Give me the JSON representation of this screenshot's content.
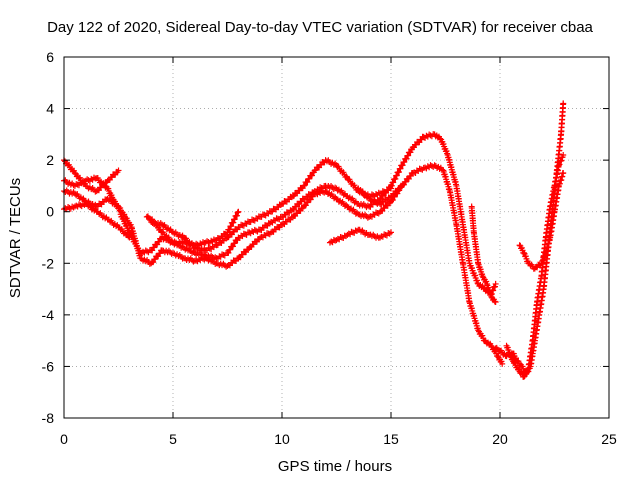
{
  "chart_data": {
    "type": "scatter",
    "title": "Day 122 of 2020, Sidereal Day-to-day VTEC variation (SDTVAR) for receiver cbaa",
    "xlabel": "GPS time / hours",
    "ylabel": "SDTVAR / TECUs",
    "xlim": [
      0,
      25
    ],
    "ylim": [
      -8,
      6
    ],
    "xticks": [
      "0",
      "5",
      "10",
      "15",
      "20",
      "25"
    ],
    "yticks": [
      "-8",
      "-6",
      "-4",
      "-2",
      "0",
      "2",
      "4",
      "6"
    ],
    "grid": true,
    "marker": "+",
    "color": "#ff0000",
    "series": [
      {
        "points": [
          [
            0,
            2.0
          ],
          [
            0.5,
            1.5
          ],
          [
            1,
            1.0
          ],
          [
            1.5,
            0.8
          ],
          [
            2,
            1.2
          ],
          [
            2.5,
            1.6
          ]
        ]
      },
      {
        "points": [
          [
            0,
            1.2
          ],
          [
            0.5,
            1.0
          ],
          [
            1,
            1.2
          ],
          [
            1.5,
            1.3
          ],
          [
            2,
            0.9
          ],
          [
            2.3,
            0.4
          ],
          [
            2.6,
            0.0
          ]
        ]
      },
      {
        "points": [
          [
            0,
            0.8
          ],
          [
            0.5,
            0.7
          ],
          [
            1,
            0.4
          ],
          [
            1.5,
            0.2
          ],
          [
            2,
            0.5
          ],
          [
            2.5,
            0.2
          ],
          [
            2.8,
            -0.2
          ],
          [
            3.1,
            -0.6
          ]
        ]
      },
      {
        "points": [
          [
            0,
            0.1
          ],
          [
            0.5,
            0.2
          ],
          [
            1,
            0.3
          ],
          [
            1.5,
            0.0
          ],
          [
            2,
            -0.3
          ],
          [
            2.5,
            -0.6
          ],
          [
            3,
            -1.0
          ]
        ]
      },
      {
        "points": [
          [
            2.6,
            -0.1
          ],
          [
            3,
            -0.8
          ],
          [
            3.5,
            -1.6
          ],
          [
            4,
            -1.5
          ],
          [
            4.5,
            -1.0
          ],
          [
            5,
            -1.2
          ],
          [
            5.5,
            -1.4
          ],
          [
            6,
            -1.6
          ],
          [
            6.5,
            -1.7
          ],
          [
            7,
            -1.8
          ],
          [
            7.5,
            -1.6
          ],
          [
            8,
            -1.0
          ],
          [
            8.5,
            -0.8
          ],
          [
            9,
            -0.7
          ],
          [
            9.5,
            -0.4
          ],
          [
            10,
            -0.2
          ],
          [
            10.5,
            0.1
          ],
          [
            11,
            0.5
          ],
          [
            11.5,
            0.8
          ],
          [
            12,
            1.0
          ],
          [
            12.5,
            0.9
          ],
          [
            13,
            0.6
          ],
          [
            13.5,
            0.3
          ],
          [
            14,
            0.2
          ],
          [
            14.5,
            0.5
          ],
          [
            15,
            1.0
          ],
          [
            15.5,
            1.8
          ],
          [
            16,
            2.5
          ],
          [
            16.5,
            2.9
          ],
          [
            17,
            3.0
          ],
          [
            17.3,
            2.8
          ],
          [
            17.6,
            2.2
          ],
          [
            18,
            1.0
          ],
          [
            18.3,
            -0.5
          ],
          [
            18.6,
            -2.0
          ],
          [
            19,
            -2.8
          ],
          [
            19.3,
            -3.0
          ],
          [
            19.6,
            -3.2
          ],
          [
            19.8,
            -2.8
          ]
        ]
      },
      {
        "points": [
          [
            3.1,
            -0.6
          ],
          [
            3.5,
            -1.8
          ],
          [
            4,
            -2.0
          ],
          [
            4.5,
            -1.5
          ],
          [
            5,
            -1.6
          ],
          [
            5.5,
            -1.8
          ],
          [
            6,
            -1.9
          ],
          [
            6.5,
            -1.8
          ],
          [
            7,
            -2.0
          ],
          [
            7.5,
            -2.1
          ],
          [
            8,
            -1.8
          ],
          [
            8.5,
            -1.4
          ],
          [
            9,
            -1.0
          ],
          [
            9.5,
            -0.8
          ],
          [
            10,
            -0.5
          ],
          [
            10.5,
            -0.2
          ],
          [
            11,
            0.2
          ],
          [
            11.5,
            0.7
          ],
          [
            12,
            0.8
          ],
          [
            12.5,
            0.5
          ],
          [
            13,
            0.2
          ],
          [
            13.5,
            -0.1
          ],
          [
            14,
            -0.2
          ],
          [
            14.5,
            0.0
          ],
          [
            15,
            0.4
          ],
          [
            15.5,
            1.0
          ],
          [
            16,
            1.5
          ],
          [
            16.5,
            1.7
          ],
          [
            17,
            1.8
          ],
          [
            17.4,
            1.6
          ],
          [
            17.7,
            0.8
          ],
          [
            18,
            -0.5
          ],
          [
            18.3,
            -2.0
          ],
          [
            18.6,
            -3.5
          ],
          [
            19,
            -4.6
          ],
          [
            19.3,
            -5.0
          ],
          [
            19.6,
            -5.2
          ],
          [
            19.9,
            -5.6
          ],
          [
            20.1,
            -5.9
          ]
        ]
      },
      {
        "points": [
          [
            3.8,
            -0.2
          ],
          [
            4,
            -0.3
          ],
          [
            4.5,
            -0.8
          ],
          [
            5,
            -1.2
          ],
          [
            5.5,
            -1.2
          ],
          [
            6,
            -1.3
          ],
          [
            6.5,
            -1.2
          ],
          [
            7,
            -1.1
          ],
          [
            7.5,
            -0.8
          ],
          [
            8,
            0.0
          ]
        ]
      },
      {
        "points": [
          [
            4,
            -0.4
          ],
          [
            4.5,
            -0.5
          ],
          [
            5,
            -0.8
          ],
          [
            5.5,
            -1.0
          ],
          [
            6,
            -1.4
          ],
          [
            6.5,
            -1.5
          ],
          [
            7,
            -1.3
          ],
          [
            7.5,
            -1.0
          ],
          [
            8,
            -0.6
          ],
          [
            8.5,
            -0.4
          ],
          [
            9,
            -0.2
          ],
          [
            9.5,
            0.0
          ],
          [
            10,
            0.3
          ],
          [
            10.5,
            0.6
          ],
          [
            11,
            1.0
          ],
          [
            11.5,
            1.6
          ],
          [
            12,
            2.0
          ],
          [
            12.5,
            1.8
          ],
          [
            13,
            1.3
          ],
          [
            13.5,
            0.8
          ],
          [
            14,
            0.6
          ],
          [
            14.5,
            0.7
          ],
          [
            15,
            0.9
          ]
        ]
      },
      {
        "points": [
          [
            12.2,
            -1.2
          ],
          [
            12.5,
            -1.1
          ],
          [
            13,
            -0.9
          ],
          [
            13.5,
            -0.7
          ],
          [
            14,
            -0.9
          ],
          [
            14.5,
            -1.0
          ],
          [
            15,
            -0.8
          ]
        ]
      },
      {
        "points": [
          [
            13.5,
            0.9
          ],
          [
            14,
            0.5
          ],
          [
            14.5,
            0.3
          ],
          [
            15,
            0.6
          ],
          [
            15.5,
            1.0
          ]
        ]
      },
      {
        "points": [
          [
            18.7,
            0.2
          ],
          [
            18.8,
            -0.8
          ],
          [
            19,
            -2.0
          ],
          [
            19.2,
            -2.5
          ],
          [
            19.4,
            -2.8
          ],
          [
            19.6,
            -3.3
          ],
          [
            19.8,
            -3.5
          ]
        ]
      },
      {
        "points": [
          [
            19.8,
            -5.3
          ],
          [
            20,
            -5.4
          ],
          [
            20.3,
            -5.6
          ],
          [
            20.6,
            -5.5
          ],
          [
            20.8,
            -5.8
          ],
          [
            21,
            -6.0
          ],
          [
            21.2,
            -6.3
          ],
          [
            21.4,
            -6.0
          ],
          [
            21.5,
            -5.5
          ],
          [
            21.6,
            -5.0
          ],
          [
            21.8,
            -4.0
          ],
          [
            22,
            -3.0
          ],
          [
            22.2,
            -1.5
          ],
          [
            22.4,
            0.0
          ],
          [
            22.6,
            1.5
          ],
          [
            22.8,
            3.0
          ],
          [
            22.9,
            4.2
          ]
        ]
      },
      {
        "points": [
          [
            20.3,
            -5.2
          ],
          [
            20.6,
            -5.8
          ],
          [
            20.9,
            -6.2
          ],
          [
            21.1,
            -6.4
          ],
          [
            21.3,
            -6.1
          ],
          [
            21.5,
            -5.0
          ],
          [
            21.7,
            -3.5
          ],
          [
            21.9,
            -2.5
          ],
          [
            22.1,
            -1.0
          ],
          [
            22.3,
            0.2
          ],
          [
            22.5,
            1.0
          ],
          [
            22.7,
            1.8
          ],
          [
            22.9,
            2.2
          ]
        ]
      },
      {
        "points": [
          [
            20.9,
            -1.3
          ],
          [
            21.1,
            -1.6
          ],
          [
            21.3,
            -2.0
          ],
          [
            21.6,
            -2.2
          ],
          [
            21.9,
            -2.0
          ],
          [
            22.1,
            -1.6
          ],
          [
            22.3,
            -1.0
          ],
          [
            22.5,
            0.0
          ],
          [
            22.7,
            1.0
          ],
          [
            22.9,
            1.5
          ]
        ]
      }
    ]
  }
}
